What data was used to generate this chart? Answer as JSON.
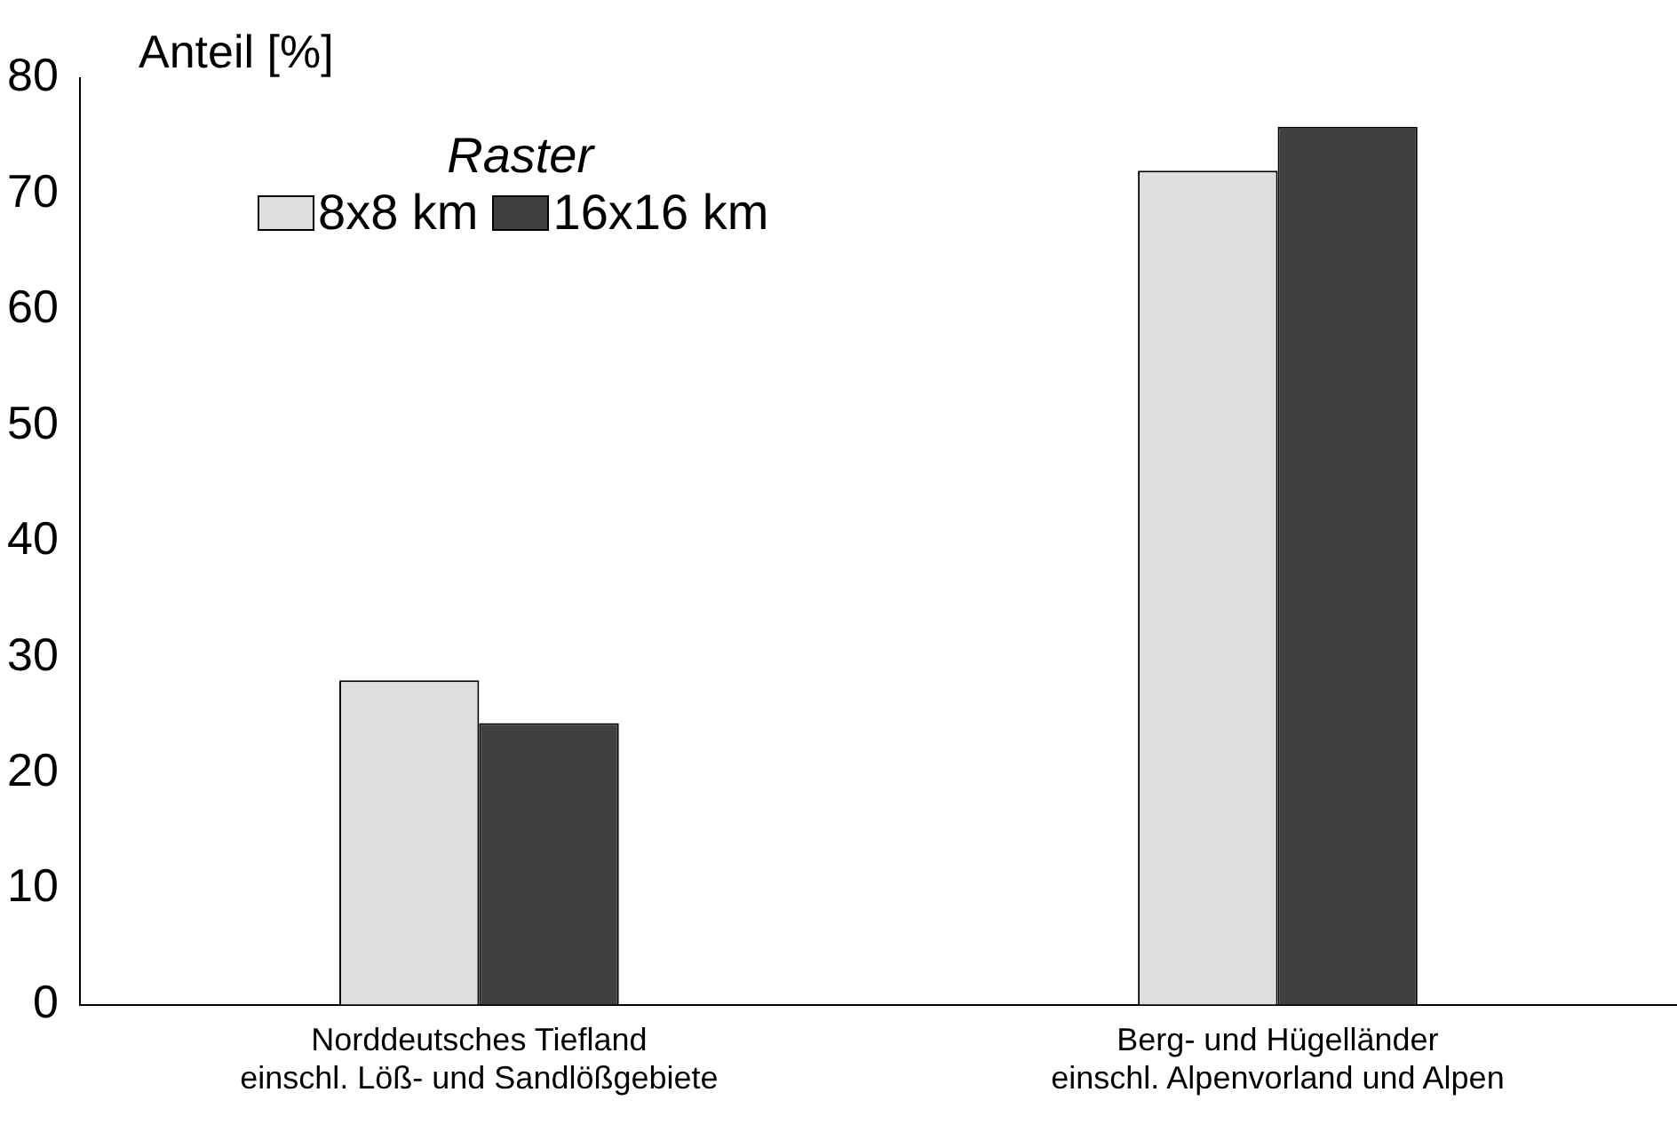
{
  "chart_data": {
    "type": "bar",
    "ylabel": "Anteil [%]",
    "legend_title": "Raster",
    "categories": [
      "Norddeutsches Tiefland\neinschl. Löß- und Sandlößgebiete",
      "Berg- und Hügelländer\neinschl. Alpenvorland und Alpen"
    ],
    "series": [
      {
        "name": "8x8 km",
        "color": "#dedede",
        "values": [
          28,
          72
        ]
      },
      {
        "name": "16x16 km",
        "color": "#404040",
        "values": [
          24.3,
          75.8
        ]
      }
    ],
    "ylim": [
      0,
      80
    ],
    "yticks": [
      0,
      10,
      20,
      30,
      40,
      50,
      60,
      70,
      80
    ],
    "grid": false,
    "legend": "top left"
  }
}
